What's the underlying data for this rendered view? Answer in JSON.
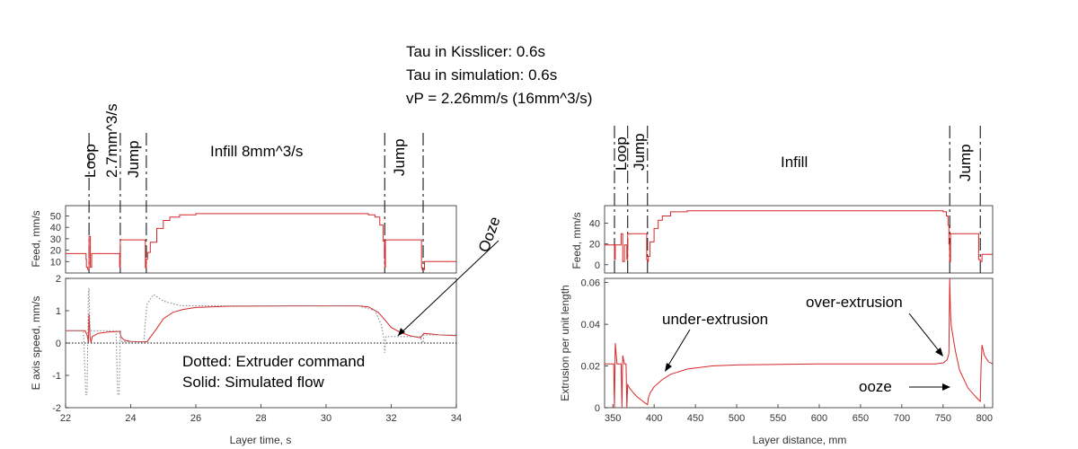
{
  "header": {
    "line1": "Tau in Kisslicer: 0.6s",
    "line2": "Tau in simulation: 0.6s",
    "line3": "vP = 2.26mm/s (16mm^3/s)"
  },
  "colors": {
    "series": "#d62728",
    "command": "#8a8a8a",
    "axis": "#262626",
    "text": "#000000"
  },
  "chart_data": [
    {
      "type": "line",
      "panel": "left",
      "xlabel": "Layer time, s",
      "xlim": [
        22,
        34
      ],
      "xticks": [
        22,
        24,
        26,
        28,
        30,
        32,
        34
      ],
      "phase_dividers": [
        22.72,
        23.68,
        24.48,
        31.8,
        32.98
      ],
      "phase_labels": [
        {
          "text": "Loop",
          "x": 22.72,
          "rotated": true
        },
        {
          "text": "2.7mm^3/s",
          "x": 23.3,
          "rotated": true
        },
        {
          "text": "Jump",
          "x": 24.1,
          "rotated": true
        },
        {
          "text": "Infill 8mm^3/s",
          "x": 28.1,
          "rotated": false
        },
        {
          "text": "Jump",
          "x": 32.42,
          "rotated": true
        }
      ],
      "top": {
        "ylabel": "Feed, mm/s",
        "ylim": [
          0,
          59
        ],
        "yticks": [
          10,
          20,
          30,
          40,
          50
        ],
        "series": [
          {
            "name": "Feed",
            "x": [
              22,
              22.6,
              22.63,
              22.64,
              22.68,
              22.72,
              22.76,
              22.8,
              22.82,
              22.84,
              23.65,
              23.66,
              23.68,
              23.72,
              24.4,
              24.45,
              24.46,
              24.48,
              24.52,
              24.6,
              24.8,
              25.0,
              25.2,
              25.5,
              26,
              27,
              30,
              31,
              31.3,
              31.5,
              31.65,
              31.75,
              31.79,
              31.8,
              31.82,
              31.84,
              32.9,
              32.93,
              32.95,
              32.98,
              33.02,
              33.05,
              34
            ],
            "y": [
              17,
              17,
              12,
              5,
              3,
              32,
              5,
              17,
              17,
              17,
              17,
              5,
              29,
              29,
              29,
              5,
              4,
              12,
              18,
              27,
              39,
              46,
              49,
              51,
              52,
              52,
              52,
              52,
              51,
              49,
              42,
              28,
              13,
              5,
              29,
              29,
              29,
              5,
              3,
              3,
              10,
              10,
              10
            ]
          }
        ]
      },
      "bottom": {
        "ylabel": "E axis speed, mm/s",
        "ylim": [
          -2,
          2
        ],
        "yticks": [
          -2,
          -1,
          0,
          1,
          2
        ],
        "series": [
          {
            "name": "Simulated flow",
            "style": "solid",
            "x": [
              22,
              22.6,
              22.66,
              22.7,
              22.72,
              22.75,
              22.78,
              22.82,
              23.0,
              23.3,
              23.5,
              23.66,
              23.7,
              23.8,
              24.0,
              24.3,
              24.5,
              24.8,
              25.0,
              25.3,
              25.6,
              26,
              27,
              29,
              31,
              31.3,
              31.6,
              31.8,
              32.0,
              32.3,
              32.6,
              32.9,
              33.0,
              33.2,
              33.5,
              34
            ],
            "y": [
              0.38,
              0.38,
              0.25,
              0.02,
              0.9,
              0.2,
              0.02,
              0.2,
              0.3,
              0.34,
              0.35,
              0.36,
              0.2,
              0.09,
              0.05,
              0.04,
              0.04,
              0.45,
              0.75,
              0.95,
              1.04,
              1.1,
              1.14,
              1.15,
              1.15,
              1.12,
              0.95,
              0.72,
              0.48,
              0.32,
              0.22,
              0.16,
              0.3,
              0.28,
              0.25,
              0.23
            ]
          },
          {
            "name": "Extruder command",
            "style": "dotted",
            "x": [
              22,
              22.55,
              22.62,
              22.66,
              22.7,
              22.72,
              22.75,
              22.8,
              23.0,
              23.55,
              23.6,
              23.64,
              23.68,
              23.72,
              23.8,
              24.4,
              24.5,
              24.7,
              25.0,
              25.5,
              26,
              31,
              31.5,
              31.7,
              31.78,
              31.8,
              31.84,
              32.0,
              32.5,
              32.9,
              32.95,
              32.98,
              33.0,
              34
            ],
            "y": [
              0.38,
              0.38,
              -1.6,
              -1.6,
              1.5,
              1.7,
              0.4,
              0.38,
              0.38,
              0.38,
              -1.6,
              -1.6,
              0.4,
              0.05,
              0.04,
              0.04,
              1.2,
              1.5,
              1.3,
              1.16,
              1.15,
              1.15,
              1.0,
              0.55,
              0.1,
              -0.3,
              0.2,
              0.2,
              0.2,
              0.2,
              0.02,
              0.0,
              0.25,
              0.25
            ]
          }
        ],
        "annotations": [
          {
            "text": "Ooze",
            "rotated": true
          },
          {
            "text": "Dotted: Extruder command"
          },
          {
            "text": "Solid: Simulated flow"
          }
        ]
      }
    },
    {
      "type": "line",
      "panel": "right",
      "xlabel": "Layer distance, mm",
      "xlim": [
        340,
        810
      ],
      "xticks": [
        350,
        400,
        450,
        500,
        550,
        600,
        650,
        700,
        750,
        800
      ],
      "phase_dividers": [
        352,
        368,
        392,
        758,
        795
      ],
      "phase_labels": [
        {
          "text": "Loop",
          "x": 358,
          "rotated": true
        },
        {
          "text": "Jump",
          "x": 380,
          "rotated": true
        },
        {
          "text": "Infill",
          "x": 575,
          "rotated": false
        },
        {
          "text": "Jump",
          "x": 776,
          "rotated": true
        }
      ],
      "top": {
        "ylabel": "Feed, mm/s",
        "ylim": [
          -8,
          57
        ],
        "yticks": [
          0,
          20,
          40
        ],
        "series": [
          {
            "name": "Feed",
            "x": [
              340,
              351,
              352,
              353,
              356,
              358,
              360,
              362,
              364,
              366,
              367,
              368,
              370,
              390,
              391,
              392,
              393,
              395,
              400,
              405,
              410,
              420,
              440,
              500,
              740,
              750,
              754,
              756,
              757,
              758,
              759,
              760,
              792,
              793,
              795,
              796,
              797,
              798,
              800,
              810
            ],
            "y": [
              19,
              19,
              5,
              19,
              19,
              19,
              30,
              3,
              19,
              19,
              5,
              30,
              30,
              30,
              5,
              3,
              8,
              22,
              35,
              43,
              47,
              51,
              52,
              52,
              52,
              51,
              47,
              38,
              20,
              3,
              30,
              30,
              30,
              5,
              3,
              3,
              10,
              10,
              10,
              10
            ]
          }
        ]
      },
      "bottom": {
        "ylabel": "Extrusion per unit length",
        "ylim": [
          0,
          0.062
        ],
        "yticks": [
          0,
          0.02,
          0.04,
          0.06
        ],
        "series": [
          {
            "name": "Extrusion",
            "style": "solid",
            "x": [
              340,
              351,
              352,
              353,
              355,
              358,
              360,
              361,
              362,
              364,
              366,
              367,
              368,
              370,
              375,
              380,
              385,
              390,
              392,
              393,
              395,
              400,
              410,
              420,
              440,
              470,
              500,
              600,
              700,
              740,
              750,
              755,
              757,
              758,
              759,
              760,
              762,
              765,
              770,
              780,
              790,
              795,
              796,
              797,
              800,
              805,
              810
            ],
            "y": [
              0.021,
              0.021,
              0.0,
              0.031,
              0.021,
              0.021,
              0.021,
              0.0,
              0.025,
              0.021,
              0.021,
              0.0,
              0.011,
              0.0095,
              0.007,
              0.005,
              0.0035,
              0.002,
              0.0015,
              0.0045,
              0.007,
              0.01,
              0.0135,
              0.016,
              0.0185,
              0.02,
              0.0205,
              0.021,
              0.021,
              0.021,
              0.0215,
              0.023,
              0.026,
              0.062,
              0.045,
              0.039,
              0.034,
              0.027,
              0.018,
              0.0095,
              0.005,
              0.003,
              0.02,
              0.03,
              0.025,
              0.022,
              0.021
            ]
          }
        ],
        "annotations": [
          {
            "text": "under-extrusion"
          },
          {
            "text": "over-extrusion"
          },
          {
            "text": "ooze"
          }
        ]
      }
    }
  ]
}
